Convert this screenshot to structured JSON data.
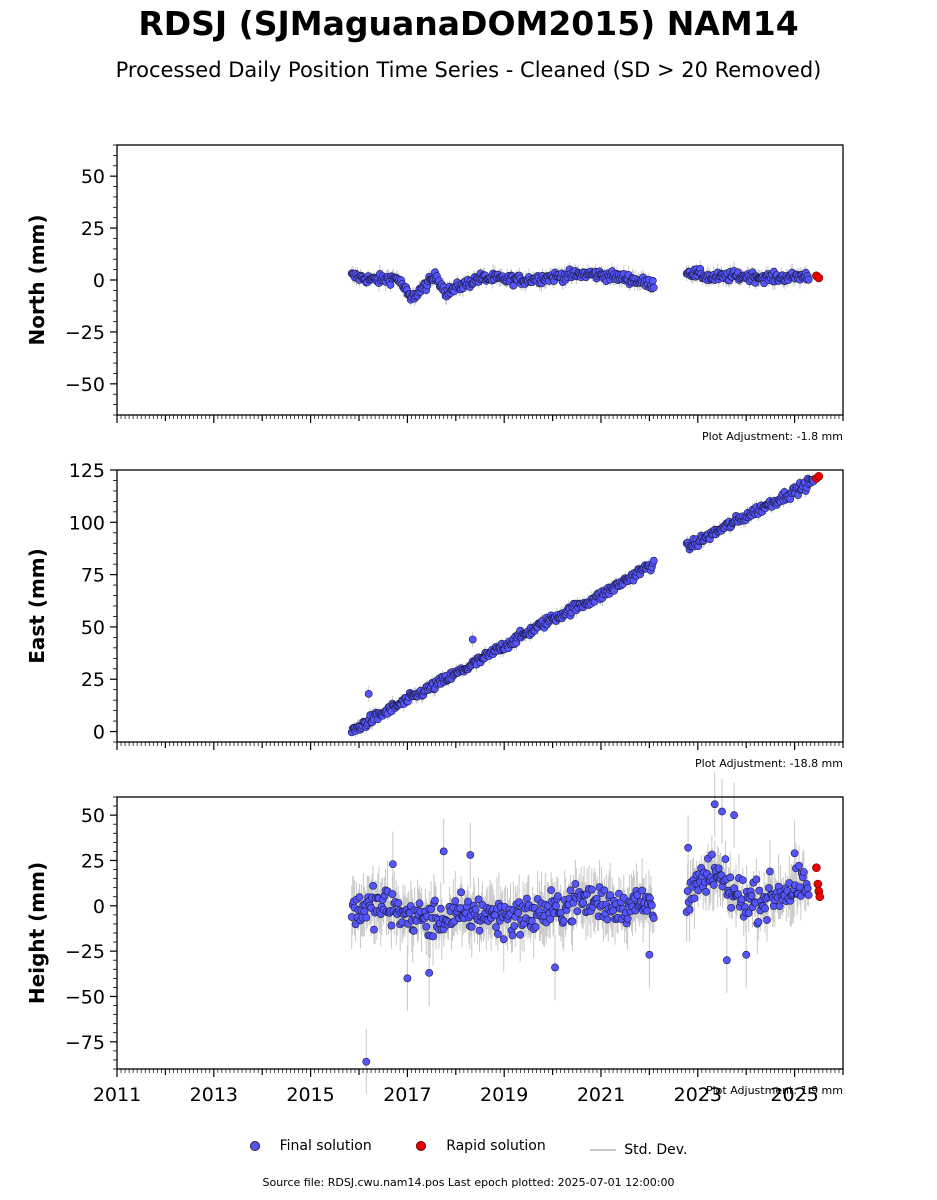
{
  "title": "RDSJ (SJMaguanaDOM2015) NAM14",
  "subtitle": "Processed Daily Position Time Series - Cleaned (SD > 20 Removed)",
  "legend": {
    "final": "Final solution",
    "rapid": "Rapid solution",
    "std": "Std. Dev."
  },
  "colors": {
    "final": "#5555ff",
    "rapid": "#ee0000",
    "std": "#c8c8c8"
  },
  "source": "Source file: RDSJ.cwu.nam14.pos  Last epoch plotted: 2025-07-01 12:00:00",
  "chart_data": [
    {
      "type": "scatter",
      "ylabel": "North (mm)",
      "ylim": [
        -65,
        65
      ],
      "yticks": [
        50,
        25,
        0,
        -25,
        -50
      ],
      "adjustment": "Plot Adjustment: -1.8 mm",
      "xlim": [
        2011,
        2026
      ],
      "gaps": [
        [
          2022.1,
          2022.75
        ]
      ],
      "series": [
        {
          "name": "Final solution",
          "x": [
            2015.85,
            2016.3,
            2016.8,
            2017.07,
            2017.6,
            2017.8,
            2018.5,
            2019.4,
            2020.2,
            2020.8,
            2021.5,
            2022.05,
            2022.8,
            2023.3,
            2023.8,
            2024.6,
            2025.3
          ],
          "y": [
            2,
            0,
            1,
            -9,
            2,
            -6,
            1,
            0,
            2,
            3,
            1,
            -2,
            4,
            1,
            2,
            1,
            2
          ]
        },
        {
          "name": "Rapid solution",
          "x": [
            2025.45,
            2025.5
          ],
          "y": [
            2,
            1
          ]
        }
      ]
    },
    {
      "type": "scatter",
      "ylabel": "East (mm)",
      "ylim": [
        -5,
        125
      ],
      "yticks": [
        125,
        100,
        75,
        50,
        25,
        0
      ],
      "adjustment": "Plot Adjustment: -18.8 mm",
      "xlim": [
        2011,
        2026
      ],
      "gaps": [
        [
          2022.1,
          2022.75
        ]
      ],
      "series": [
        {
          "name": "Final solution",
          "x": [
            2015.85,
            2016.2,
            2017.0,
            2017.8,
            2018.5,
            2019.0,
            2020.0,
            2021.0,
            2022.05,
            2022.8,
            2023.5,
            2024.0,
            2025.0,
            2025.4
          ],
          "y": [
            0,
            5,
            15,
            25,
            34,
            41,
            54,
            65,
            80,
            88,
            97,
            103,
            115,
            120
          ],
          "outliers": [
            [
              2016.2,
              18
            ],
            [
              2018.35,
              44
            ]
          ]
        },
        {
          "name": "Rapid solution",
          "x": [
            2025.45,
            2025.5
          ],
          "y": [
            121,
            122
          ]
        }
      ]
    },
    {
      "type": "scatter",
      "ylabel": "Height (mm)",
      "ylim": [
        -90,
        60
      ],
      "yticks": [
        50,
        25,
        0,
        -25,
        -50,
        -75
      ],
      "adjustment": "Plot Adjustment: 1.9 mm",
      "xlim": [
        2011,
        2026
      ],
      "xticks": [
        2011,
        2013,
        2015,
        2017,
        2019,
        2021,
        2023,
        2025
      ],
      "gaps": [
        [
          2022.1,
          2022.75
        ]
      ],
      "series": [
        {
          "name": "Final solution",
          "x": [
            2015.85,
            2016.5,
            2017.0,
            2017.5,
            2018.0,
            2018.5,
            2019.0,
            2019.5,
            2020.0,
            2020.5,
            2021.0,
            2021.5,
            2022.05,
            2022.8,
            2023.3,
            2023.8,
            2024.3,
            2024.8,
            2025.3
          ],
          "y": [
            -2,
            0,
            -5,
            -8,
            -6,
            -4,
            -6,
            -5,
            -3,
            3,
            2,
            0,
            2,
            5,
            18,
            5,
            3,
            8,
            10
          ],
          "outliers": [
            [
              2016.15,
              -86
            ],
            [
              2017.0,
              -40
            ],
            [
              2017.45,
              -37
            ],
            [
              2017.75,
              30
            ],
            [
              2018.3,
              28
            ],
            [
              2016.7,
              23
            ],
            [
              2020.05,
              -34
            ],
            [
              2022.0,
              -27
            ],
            [
              2022.8,
              32
            ],
            [
              2023.35,
              56
            ],
            [
              2023.5,
              52
            ],
            [
              2023.75,
              50
            ],
            [
              2025.0,
              29
            ],
            [
              2024.0,
              -27
            ],
            [
              2023.6,
              -30
            ]
          ]
        },
        {
          "name": "Rapid solution",
          "x": [
            2025.45,
            2025.48,
            2025.5,
            2025.52
          ],
          "y": [
            21,
            12,
            8,
            5
          ]
        }
      ]
    }
  ]
}
